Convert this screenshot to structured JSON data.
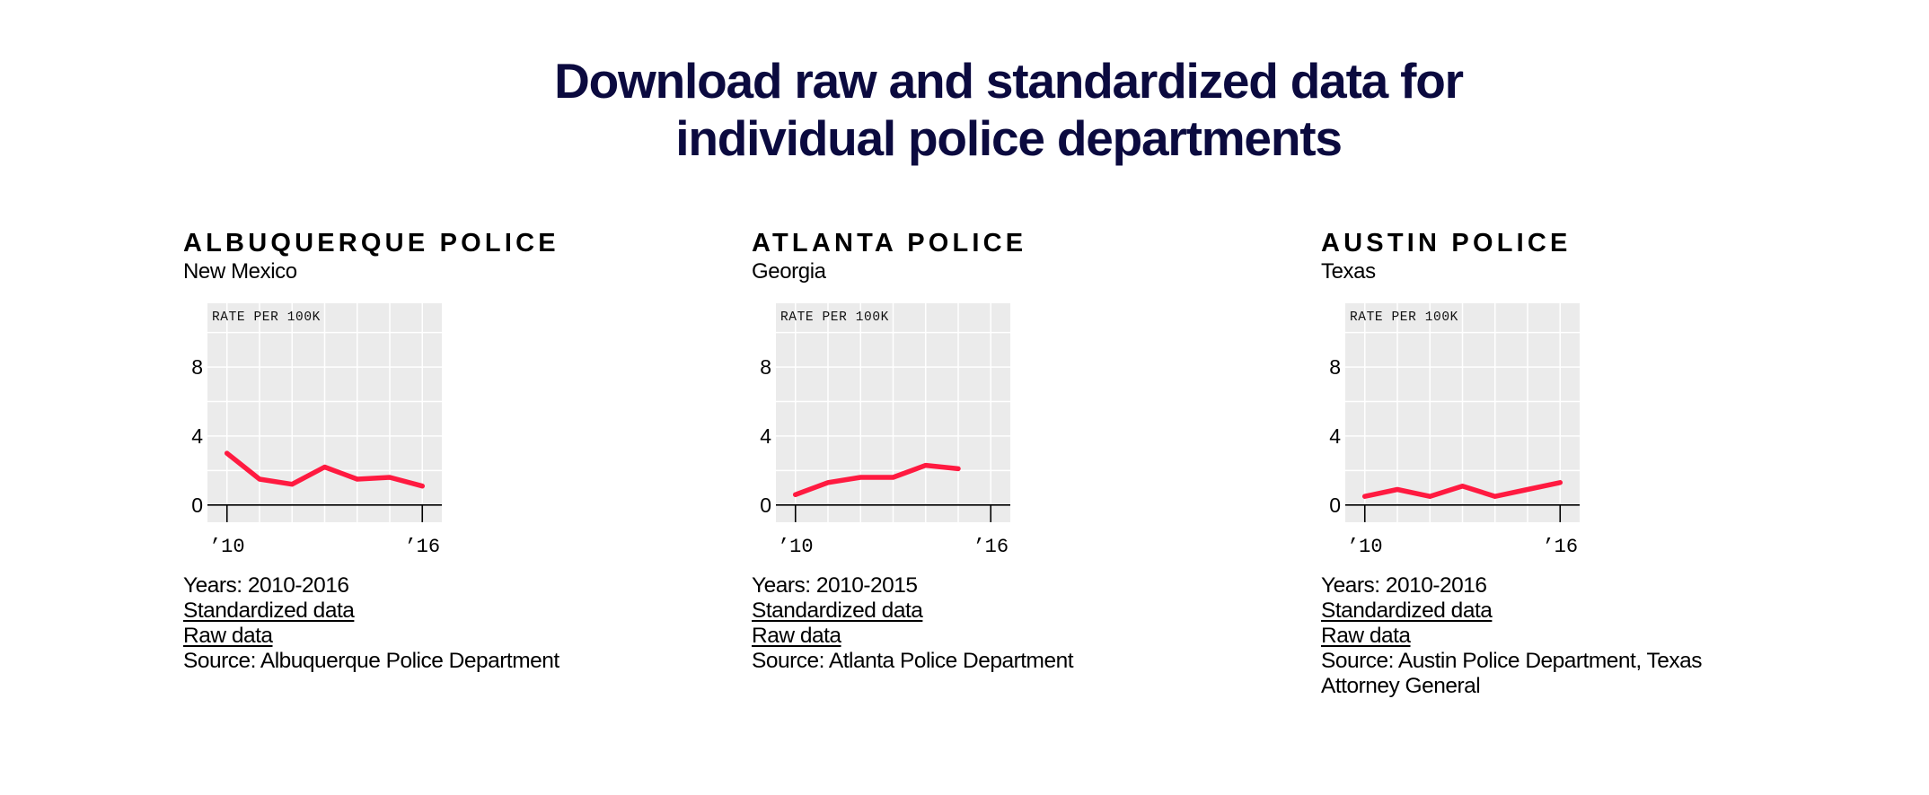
{
  "page": {
    "title_line1": "Download raw and standardized data for",
    "title_line2": "individual police departments"
  },
  "colors": {
    "title": "#0b0a3f",
    "line": "#ff1a40",
    "chart_bg": "#ebebeb",
    "gridline": "#ffffff",
    "axis": "#000000"
  },
  "departments": [
    {
      "name": "ALBUQUERQUE POLICE",
      "state": "New Mexico",
      "years_text": "Years: 2010-2016",
      "standardized_link": "Standardized data",
      "raw_link": "Raw data",
      "source": "Source: Albuquerque Police Department"
    },
    {
      "name": "ATLANTA POLICE",
      "state": "Georgia",
      "years_text": "Years: 2010-2015",
      "standardized_link": "Standardized data",
      "raw_link": "Raw data",
      "source": "Source: Atlanta Police Department"
    },
    {
      "name": "AUSTIN POLICE",
      "state": "Texas",
      "years_text": "Years: 2010-2016",
      "standardized_link": "Standardized data",
      "raw_link": "Raw data",
      "source": "Source: Austin Police Department, Texas Attorney General"
    }
  ],
  "chart_data": [
    {
      "type": "line",
      "title": "Albuquerque Police",
      "ylabel": "RATE PER 100K",
      "xlabel": "",
      "x": [
        2010,
        2011,
        2012,
        2013,
        2014,
        2015,
        2016
      ],
      "series": [
        {
          "name": "Rate per 100K",
          "values": [
            3.0,
            1.5,
            1.2,
            2.2,
            1.5,
            1.6,
            1.1
          ]
        }
      ],
      "xticks": [
        2010,
        2016
      ],
      "xtick_labels": [
        "’10",
        "’16"
      ],
      "yticks": [
        0,
        4,
        8
      ],
      "ytick_labels": [
        "0",
        "4",
        "8"
      ],
      "ylim": [
        -1,
        11.7
      ],
      "xlim": [
        2009.4,
        2016.6
      ],
      "grid": true,
      "ygrid_step": 2
    },
    {
      "type": "line",
      "title": "Atlanta Police",
      "ylabel": "RATE PER 100K",
      "xlabel": "",
      "x": [
        2010,
        2011,
        2012,
        2013,
        2014,
        2015
      ],
      "series": [
        {
          "name": "Rate per 100K",
          "values": [
            0.6,
            1.3,
            1.6,
            1.6,
            2.3,
            2.1
          ]
        }
      ],
      "xticks": [
        2010,
        2016
      ],
      "xtick_labels": [
        "’10",
        "’16"
      ],
      "yticks": [
        0,
        4,
        8
      ],
      "ytick_labels": [
        "0",
        "4",
        "8"
      ],
      "ylim": [
        -1,
        11.7
      ],
      "xlim": [
        2009.4,
        2016.6
      ],
      "grid": true,
      "ygrid_step": 2
    },
    {
      "type": "line",
      "title": "Austin Police",
      "ylabel": "RATE PER 100K",
      "xlabel": "",
      "x": [
        2010,
        2011,
        2012,
        2013,
        2014,
        2015,
        2016
      ],
      "series": [
        {
          "name": "Rate per 100K",
          "values": [
            0.5,
            0.9,
            0.5,
            1.1,
            0.5,
            0.9,
            1.3
          ]
        }
      ],
      "xticks": [
        2010,
        2016
      ],
      "xtick_labels": [
        "’10",
        "’16"
      ],
      "yticks": [
        0,
        4,
        8
      ],
      "ytick_labels": [
        "0",
        "4",
        "8"
      ],
      "ylim": [
        -1,
        11.7
      ],
      "xlim": [
        2009.4,
        2016.6
      ],
      "grid": true,
      "ygrid_step": 2
    }
  ]
}
